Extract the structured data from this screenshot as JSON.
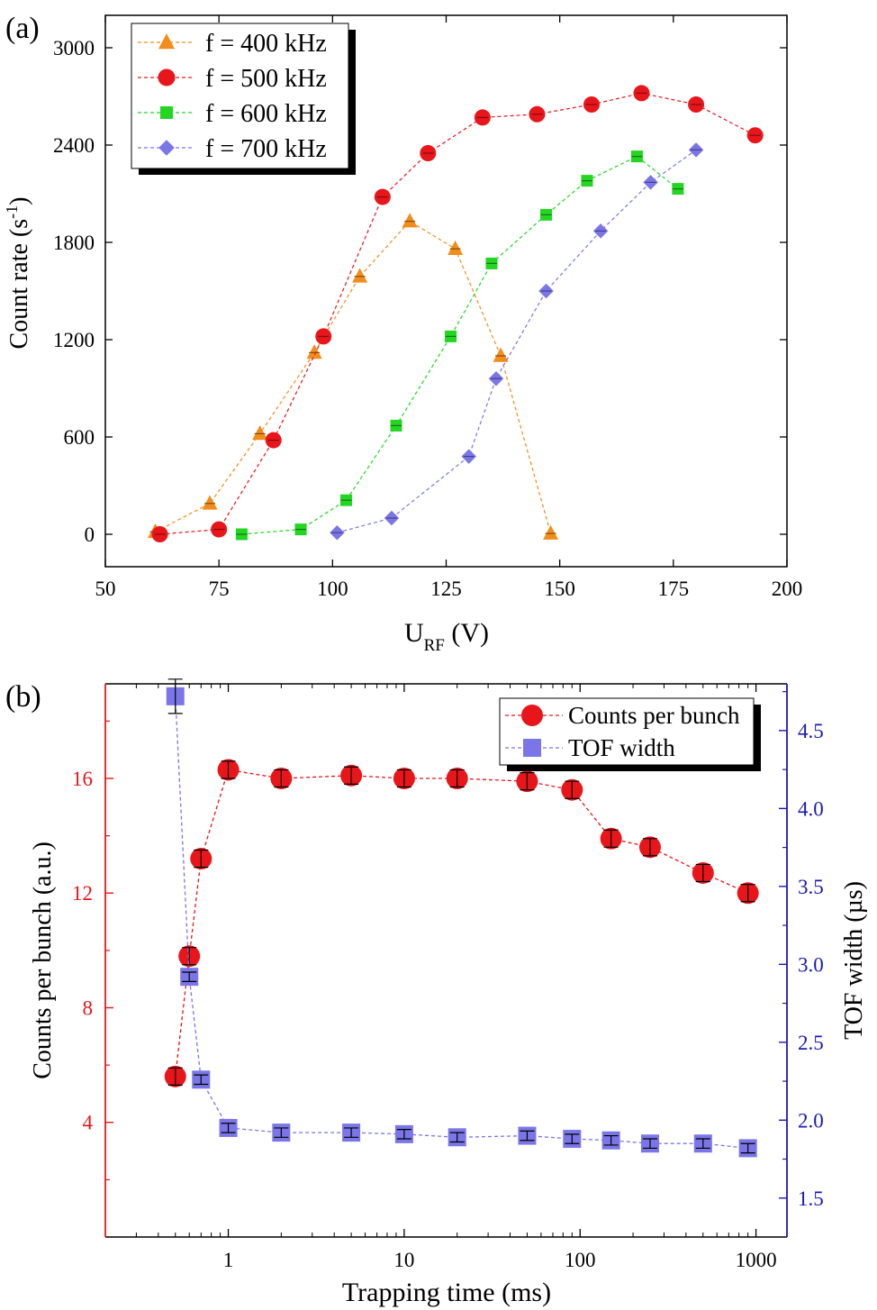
{
  "chart_data": [
    {
      "panel_label": "(a)",
      "type": "line",
      "xlabel_main": "U",
      "xlabel_sub": "RF",
      "xlabel_rest": " (V)",
      "ylabel_main": "Count rate (s",
      "ylabel_sup": "-1",
      "ylabel_end": ")",
      "xlim": [
        50,
        200
      ],
      "ylim": [
        -200,
        3200
      ],
      "xticks": [
        50,
        75,
        100,
        125,
        150,
        175,
        200
      ],
      "yticks": [
        0,
        600,
        1200,
        1800,
        2400,
        3000
      ],
      "legend_position": "top-left",
      "series": [
        {
          "name": "f = 400 kHz",
          "marker": "triangle",
          "color": "#f28c1a",
          "x": [
            61,
            73,
            84,
            96,
            106,
            117,
            127,
            137,
            148
          ],
          "y": [
            15,
            190,
            620,
            1120,
            1590,
            1930,
            1760,
            1100,
            5
          ]
        },
        {
          "name": "f = 500 kHz",
          "marker": "circle",
          "color": "#e8161a",
          "x": [
            62,
            75,
            87,
            98,
            111,
            121,
            133,
            145,
            157,
            168,
            180,
            193
          ],
          "y": [
            0,
            30,
            580,
            1220,
            2080,
            2350,
            2570,
            2590,
            2650,
            2720,
            2650,
            2460
          ]
        },
        {
          "name": "f = 600 kHz",
          "marker": "square",
          "color": "#22d622",
          "x": [
            80,
            93,
            103,
            114,
            126,
            135,
            147,
            156,
            167,
            176
          ],
          "y": [
            0,
            30,
            210,
            670,
            1220,
            1670,
            1970,
            2180,
            2330,
            2130
          ]
        },
        {
          "name": "f = 700 kHz",
          "marker": "diamond",
          "color": "#7b76e8",
          "x": [
            101,
            113,
            130,
            136,
            147,
            159,
            170,
            180
          ],
          "y": [
            10,
            100,
            480,
            960,
            1500,
            1870,
            2170,
            2370
          ]
        }
      ]
    },
    {
      "panel_label": "(b)",
      "type": "scatter",
      "xscale": "log",
      "xlabel": "Trapping time (ms)",
      "ylabel_left": "Counts per bunch (a.u.)",
      "ylabel_right": "TOF width (µs)",
      "xlim": [
        0.2,
        1500
      ],
      "ylim_left": [
        0,
        19.3
      ],
      "ylim_right": [
        1.25,
        4.8
      ],
      "xticks": [
        1,
        10,
        100,
        1000
      ],
      "xtick_labels": [
        "1",
        "10",
        "100",
        "1000"
      ],
      "yticks_left": [
        4,
        8,
        12,
        16
      ],
      "yticks_right": [
        1.5,
        2.0,
        2.5,
        3.0,
        3.5,
        4.0,
        4.5
      ],
      "ytick_labels_right": [
        "1.5",
        "2.0",
        "2.5",
        "3.0",
        "3.5",
        "4.0",
        "4.5"
      ],
      "left_axis_color": "#e8161a",
      "right_axis_color": "#1a1ab4",
      "legend_position": "top-right",
      "series": [
        {
          "name": "Counts per bunch",
          "marker": "circle",
          "color": "#e8161a",
          "axis": "left",
          "x": [
            0.5,
            0.6,
            0.7,
            1,
            2,
            5,
            10,
            20,
            50,
            90,
            150,
            250,
            500,
            900
          ],
          "y": [
            5.6,
            9.8,
            13.2,
            16.3,
            16.0,
            16.1,
            16.0,
            16.0,
            15.9,
            15.6,
            13.9,
            13.6,
            12.7,
            12.0
          ],
          "err": [
            0.3,
            0.3,
            0.3,
            0.3,
            0.3,
            0.3,
            0.3,
            0.3,
            0.3,
            0.3,
            0.3,
            0.3,
            0.3,
            0.3
          ]
        },
        {
          "name": "TOF width",
          "marker": "square",
          "color": "#7b76e8",
          "axis": "right",
          "x": [
            0.5,
            0.6,
            0.7,
            1,
            2,
            5,
            10,
            20,
            50,
            90,
            150,
            250,
            500,
            900
          ],
          "y": [
            4.72,
            2.92,
            2.26,
            1.95,
            1.92,
            1.92,
            1.91,
            1.89,
            1.9,
            1.88,
            1.87,
            1.85,
            1.85,
            1.82
          ],
          "err": [
            0.11,
            0.03,
            0.03,
            0.03,
            0.03,
            0.03,
            0.03,
            0.03,
            0.03,
            0.03,
            0.03,
            0.03,
            0.03,
            0.03
          ]
        }
      ]
    }
  ]
}
